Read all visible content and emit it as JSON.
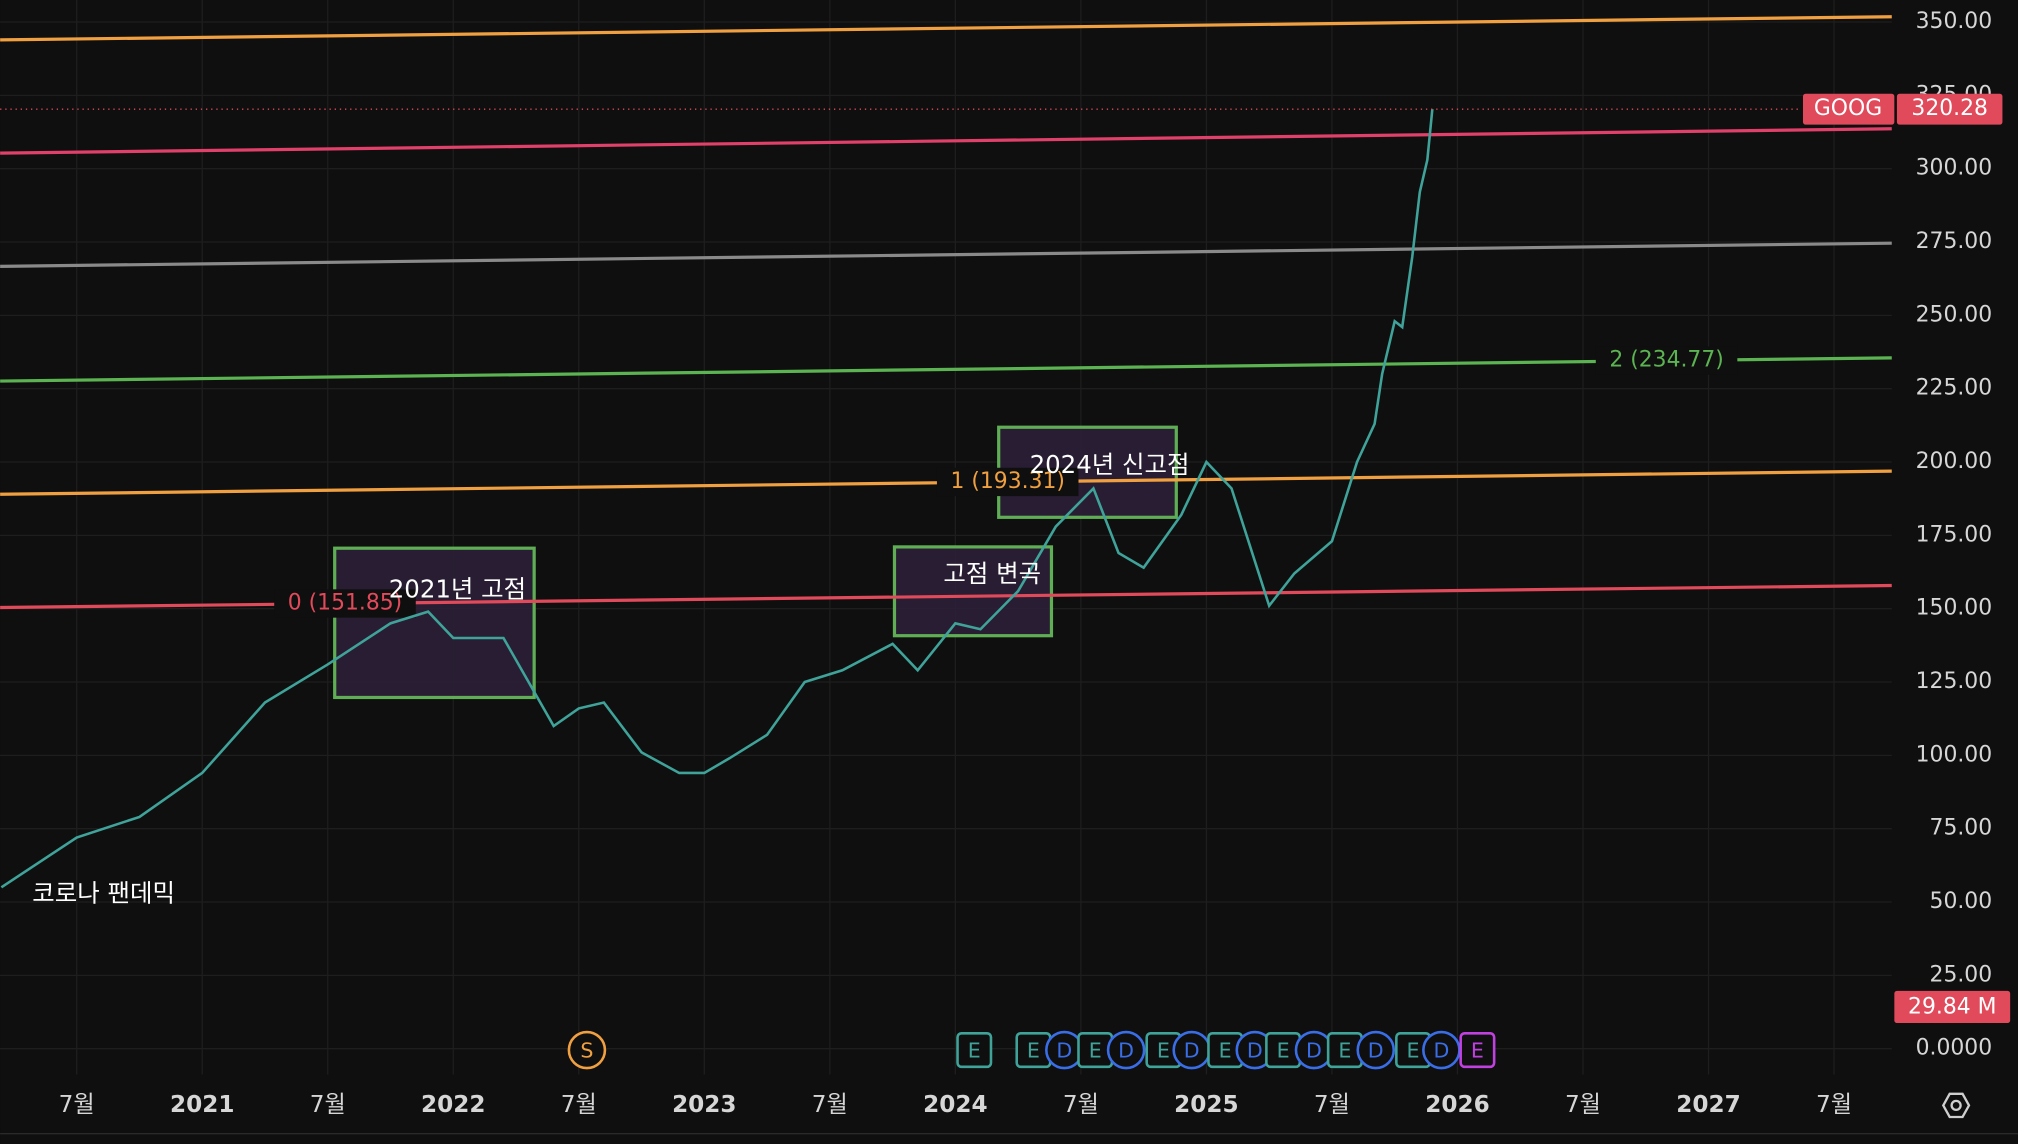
{
  "chart_data": {
    "type": "line",
    "x": [
      2020.2,
      2020.5,
      2020.75,
      2021.0,
      2021.25,
      2021.5,
      2021.75,
      2021.9,
      2022.0,
      2022.2,
      2022.3,
      2022.4,
      2022.5,
      2022.6,
      2022.75,
      2022.9,
      2023.0,
      2023.1,
      2023.25,
      2023.4,
      2023.55,
      2023.75,
      2023.85,
      2024.0,
      2024.1,
      2024.25,
      2024.4,
      2024.55,
      2024.65,
      2024.75,
      2024.9,
      2025.0,
      2025.1,
      2025.25,
      2025.35,
      2025.5,
      2025.6,
      2025.67,
      2025.7,
      2025.75,
      2025.78,
      2025.82,
      2025.85,
      2025.88,
      2025.9
    ],
    "series": [
      {
        "name": "GOOG",
        "color": "#3fa39a",
        "values": [
          55,
          72,
          79,
          94,
          118,
          131,
          145,
          149,
          140,
          140,
          125,
          110,
          116,
          118,
          101,
          94,
          94,
          99,
          107,
          125,
          129,
          138,
          129,
          145,
          143,
          156,
          178,
          191,
          169,
          164,
          182,
          200,
          191,
          151,
          162,
          173,
          200,
          213,
          230,
          248,
          246,
          270,
          292,
          303,
          320.28
        ]
      }
    ],
    "last_price": 320.28,
    "last_volume_label": "29.84 M",
    "xlim": [
      2020.195,
      2027.73
    ],
    "ylim": [
      -8.8,
      357.5
    ],
    "xticks": [
      {
        "value": 2020.5,
        "label": "7월"
      },
      2021,
      {
        "value": 2021.5,
        "label": "7월"
      },
      2022,
      {
        "value": 2022.5,
        "label": "7월"
      },
      2023,
      {
        "value": 2023.5,
        "label": "7월"
      },
      2024,
      {
        "value": 2024.5,
        "label": "7월"
      },
      2025,
      {
        "value": 2025.5,
        "label": "7월"
      },
      2026,
      {
        "value": 2026.5,
        "label": "7월"
      },
      2027,
      {
        "value": 2027.5,
        "label": "7월"
      }
    ],
    "yticks": [
      {
        "value": 0,
        "label": "0.0000"
      },
      {
        "value": 25,
        "label": "25.00"
      },
      {
        "value": 50,
        "label": "50.00"
      },
      {
        "value": 75,
        "label": "75.00"
      },
      {
        "value": 100,
        "label": "100.00"
      },
      {
        "value": 125,
        "label": "125.00"
      },
      {
        "value": 150,
        "label": "150.00"
      },
      {
        "value": 175,
        "label": "175.00"
      },
      {
        "value": 200,
        "label": "200.00"
      },
      {
        "value": 225,
        "label": "225.00"
      },
      {
        "value": 250,
        "label": "250.00"
      },
      {
        "value": 275,
        "label": "275.00"
      },
      {
        "value": 300,
        "label": "300.00"
      },
      {
        "value": 325,
        "label": "325.00"
      },
      {
        "value": 350,
        "label": "350.00"
      }
    ],
    "grid": true,
    "trend_lines": [
      {
        "color": "#f0a040",
        "values": [
          343.9,
          351.8
        ]
      },
      {
        "color": "#e0406a",
        "values": [
          305.3,
          313.6
        ]
      },
      {
        "color": "#8a8a8a",
        "values": [
          266.7,
          274.6
        ]
      },
      {
        "color": "#5cb352",
        "values": [
          227.6,
          235.5
        ],
        "label": "2 (234.77)"
      },
      {
        "color": "#f0a040",
        "values": [
          189.0,
          196.9
        ],
        "label": "1 (193.31)"
      },
      {
        "color": "#e04a5a",
        "values": [
          150.4,
          157.9
        ],
        "label": "0 (151.85)"
      }
    ],
    "annotations": [
      "코로나 팬데믹",
      "2021년 고점",
      "고점 변곡",
      "2024년 신고점"
    ],
    "event_markers": [
      "S",
      "E",
      "E",
      "D",
      "E",
      "D",
      "E",
      "D",
      "E",
      "D",
      "E",
      "D",
      "E",
      "D",
      "E",
      "D",
      "E"
    ]
  }
}
